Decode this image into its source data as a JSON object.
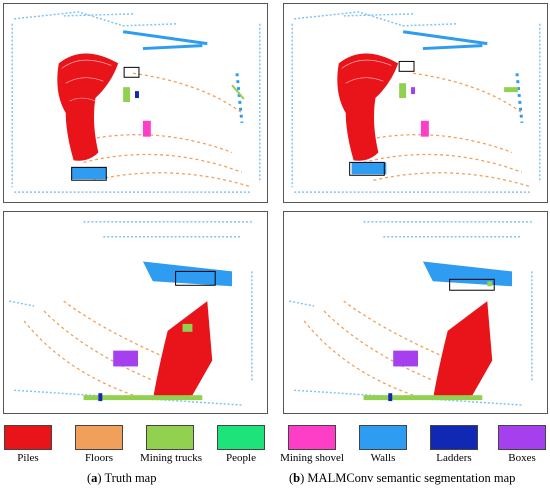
{
  "legend": [
    {
      "label": "Piles",
      "color": "#e8141a"
    },
    {
      "label": "Floors",
      "color": "#f0a05a"
    },
    {
      "label": "Mining trucks",
      "color": "#92d050"
    },
    {
      "label": "People",
      "color": "#1ee27a"
    },
    {
      "label": "Mining shovel",
      "color": "#ff3ec8"
    },
    {
      "label": "Walls",
      "color": "#2e9cf0"
    },
    {
      "label": "Ladders",
      "color": "#1028b4"
    },
    {
      "label": "Boxes",
      "color": "#a640ee"
    }
  ],
  "captions": {
    "left_letter": "a",
    "left_text": "Truth map",
    "right_letter": "b",
    "right_text": "MALMConv semantic segmentation map"
  }
}
